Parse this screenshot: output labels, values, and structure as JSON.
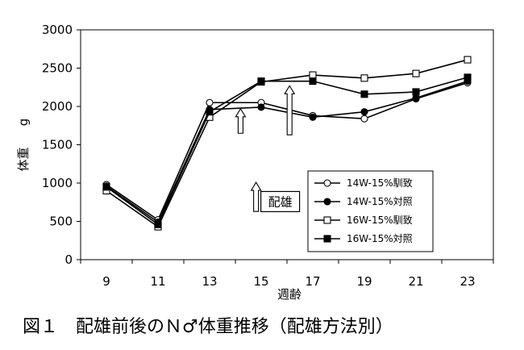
{
  "chart_data": {
    "type": "line",
    "x": [
      9,
      11,
      13,
      15,
      17,
      19,
      21,
      23
    ],
    "ylim": [
      0,
      3000
    ],
    "yticks": [
      0,
      500,
      1000,
      1500,
      2000,
      2500,
      3000
    ],
    "ytick_labels": [
      "0",
      "500",
      "1000",
      "1500",
      "2000",
      "2500",
      "3000"
    ],
    "xtick_labels": [
      "9",
      "11",
      "13",
      "15",
      "17",
      "19",
      "21",
      "23"
    ],
    "ylabel_main": "体重",
    "ylabel_unit": "g",
    "xlabel": "週齢",
    "grid": "none",
    "legend_position": "lower-right",
    "series": [
      {
        "name": "14W-15%馴致",
        "marker": "open-circle",
        "values": [
          980,
          520,
          2050,
          2050,
          1880,
          1840,
          2100,
          2310
        ]
      },
      {
        "name": "14W-15%対照",
        "marker": "filled-circle",
        "values": [
          960,
          490,
          1960,
          1990,
          1860,
          1930,
          2110,
          2330
        ]
      },
      {
        "name": "16W-15%馴致",
        "marker": "open-square",
        "values": [
          900,
          430,
          1860,
          2320,
          2410,
          2370,
          2430,
          2610
        ]
      },
      {
        "name": "16W-15%対照",
        "marker": "filled-square",
        "values": [
          950,
          460,
          1930,
          2330,
          2330,
          2160,
          2190,
          2380
        ]
      }
    ],
    "annotations": [
      {
        "type": "arrow",
        "x": 14.2,
        "y_from": 1650,
        "y_to": 1970
      },
      {
        "type": "arrow",
        "x": 16.1,
        "y_from": 1630,
        "y_to": 2270
      },
      {
        "type": "arrow",
        "x": 14.8,
        "y_from": 630,
        "y_to": 1010
      },
      {
        "type": "label",
        "text": "配雄"
      }
    ]
  },
  "caption": "図１　配雄前後のＮ♂体重推移（配雄方法別）",
  "colors": {
    "line": "#000000",
    "background": "#ffffff"
  }
}
